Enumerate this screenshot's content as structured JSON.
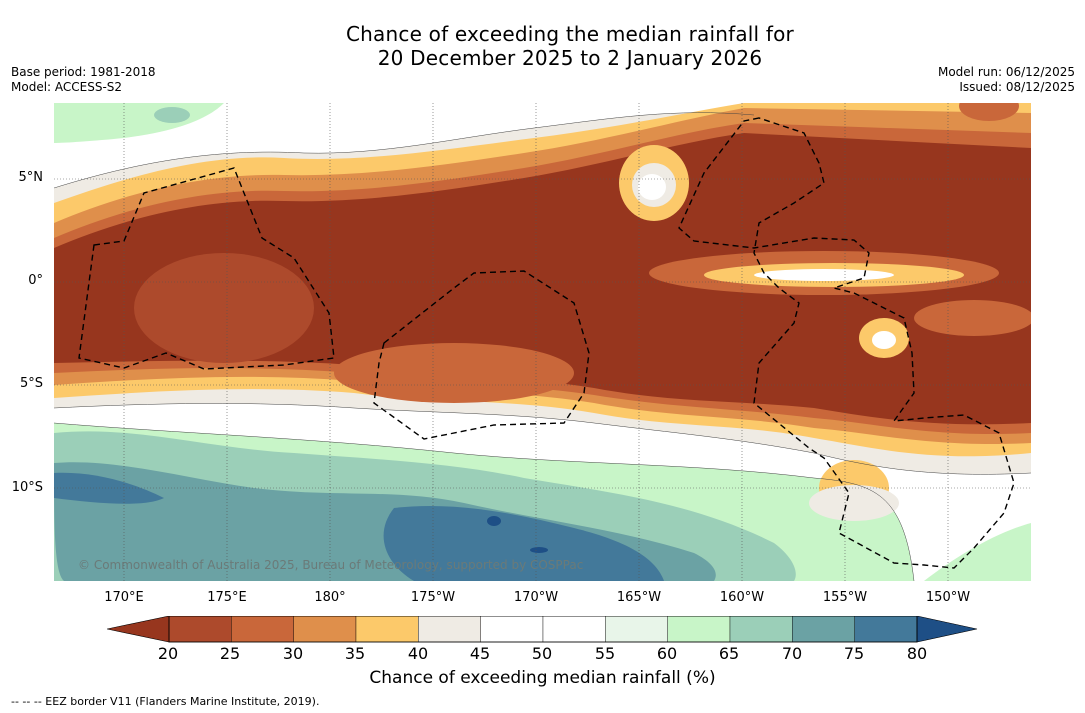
{
  "title": {
    "line1": "Chance of exceeding the median rainfall for",
    "line2": "20 December 2025 to 2 January 2026"
  },
  "meta": {
    "base_period": "Base period: 1981-2018",
    "model": "Model: ACCESS-S2",
    "model_run": "Model run: 06/12/2025",
    "issued": "Issued: 08/12/2025"
  },
  "axes": {
    "lat_labels": [
      "5°N",
      "0°",
      "5°S",
      "10°S"
    ],
    "lon_labels": [
      "170°E",
      "175°E",
      "180°",
      "175°W",
      "170°W",
      "165°W",
      "160°W",
      "155°W",
      "150°W"
    ]
  },
  "colorbar": {
    "ticks": [
      "20",
      "25",
      "30",
      "35",
      "40",
      "45",
      "50",
      "55",
      "60",
      "65",
      "70",
      "75",
      "80"
    ],
    "title": "Chance of exceeding median rainfall (%)",
    "colors": {
      "under": "#97361e",
      "bins": [
        "#ad4a2c",
        "#c9673a",
        "#df8f4b",
        "#fcc96a",
        "#efebe4",
        "#ffffff",
        "#ffffff",
        "#e8f5e9",
        "#c8f5c8",
        "#9bcfb8",
        "#6ba2a4",
        "#43799a"
      ],
      "over": "#1e4f86"
    }
  },
  "copyright": "© Commonwealth of Australia 2025, Bureau of Meteorology, supported by COSPPac",
  "footnote": "--  --  -- EEZ border V11 (Flanders Marine Institute, 2019)."
}
